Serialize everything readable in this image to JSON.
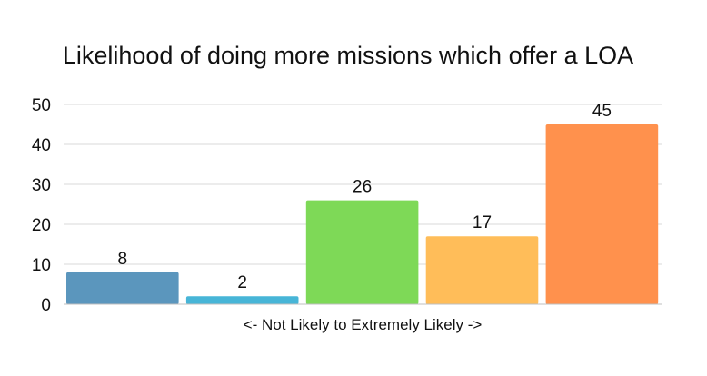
{
  "chart_data": {
    "type": "bar",
    "title": "Likelihood of doing more missions which offer a LOA",
    "xlabel": "<- Not Likely to Extremely Likely ->",
    "ylabel": "",
    "categories": [
      "",
      "",
      "",
      "",
      ""
    ],
    "values": [
      8,
      2,
      26,
      17,
      45
    ],
    "colors": [
      "#5b96bd",
      "#47b5d7",
      "#7ed957",
      "#ffbd59",
      "#ff914d"
    ],
    "ylim": [
      0,
      50
    ],
    "yticks": [
      0,
      10,
      20,
      30,
      40,
      50
    ],
    "grid": true,
    "legend": "none",
    "data_labels": true
  }
}
